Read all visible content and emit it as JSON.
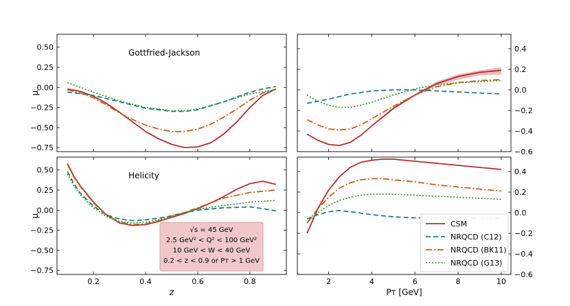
{
  "colors": {
    "CSM": "#b5292e",
    "NRQCD (C12)": "#1a7f8e",
    "NRQCD (BK11)": "#cc5d15",
    "NRQCD (G13)": "#3a9c2c",
    "band": "#e8a0a2",
    "box_fill": "#f0c8c8",
    "box_edge": "#c89a9a"
  },
  "chart_data": [
    {
      "type": "line",
      "panel": "top-left",
      "annotation": "Gottfried-Jackson",
      "xlabel": "",
      "ylabel": "μ",
      "xlim": [
        0.06,
        0.94
      ],
      "ylim": [
        -0.8,
        0.66
      ],
      "xticks": [
        0.2,
        0.4,
        0.6,
        0.8
      ],
      "yticks": [
        -0.75,
        -0.5,
        -0.25,
        0.0,
        0.25,
        0.5
      ],
      "ytick_labels": [
        "−0.75",
        "−0.50",
        "−0.25",
        "0.00",
        "0.25",
        "0.50"
      ],
      "y_axis_side": "left",
      "series": [
        {
          "name": "CSM",
          "x": [
            0.1,
            0.15,
            0.2,
            0.25,
            0.3,
            0.35,
            0.4,
            0.45,
            0.5,
            0.55,
            0.6,
            0.65,
            0.7,
            0.75,
            0.8,
            0.85,
            0.9
          ],
          "y": [
            -0.02,
            -0.05,
            -0.11,
            -0.2,
            -0.31,
            -0.43,
            -0.55,
            -0.64,
            -0.71,
            -0.75,
            -0.74,
            -0.69,
            -0.58,
            -0.43,
            -0.25,
            -0.1,
            -0.02
          ]
        },
        {
          "name": "NRQCD (C12)",
          "x": [
            0.1,
            0.2,
            0.3,
            0.4,
            0.5,
            0.55,
            0.6,
            0.7,
            0.8,
            0.85,
            0.9
          ],
          "y": [
            -0.06,
            -0.1,
            -0.18,
            -0.26,
            -0.3,
            -0.3,
            -0.28,
            -0.18,
            -0.06,
            -0.02,
            0.01
          ]
        },
        {
          "name": "NRQCD (BK11)",
          "x": [
            0.1,
            0.15,
            0.2,
            0.25,
            0.3,
            0.35,
            0.4,
            0.45,
            0.5,
            0.55,
            0.6,
            0.65,
            0.7,
            0.75,
            0.8,
            0.85,
            0.9
          ],
          "y": [
            -0.03,
            -0.07,
            -0.13,
            -0.22,
            -0.32,
            -0.4,
            -0.47,
            -0.52,
            -0.55,
            -0.55,
            -0.52,
            -0.46,
            -0.37,
            -0.27,
            -0.16,
            -0.07,
            -0.02
          ]
        },
        {
          "name": "NRQCD (G13)",
          "x": [
            0.1,
            0.15,
            0.2,
            0.3,
            0.4,
            0.5,
            0.55,
            0.6,
            0.7,
            0.8,
            0.9
          ],
          "y": [
            0.06,
            0.0,
            -0.06,
            -0.17,
            -0.25,
            -0.29,
            -0.29,
            -0.27,
            -0.18,
            -0.08,
            -0.03
          ]
        }
      ]
    },
    {
      "type": "line",
      "panel": "top-right",
      "xlabel": "",
      "ylabel": "",
      "xlim": [
        0.55,
        10.45
      ],
      "ylim": [
        -0.6,
        0.54
      ],
      "xticks": [
        2,
        4,
        6,
        8,
        10
      ],
      "yticks": [
        -0.6,
        -0.4,
        -0.2,
        0.0,
        0.2,
        0.4
      ],
      "ytick_labels": [
        "−0.6",
        "−0.4",
        "−0.2",
        "0.0",
        "0.2",
        "0.4"
      ],
      "y_axis_side": "right",
      "series": [
        {
          "name": "CSM",
          "x": [
            1,
            1.5,
            2,
            2.5,
            3,
            3.5,
            4,
            5,
            6,
            7,
            8,
            9,
            10
          ],
          "y": [
            -0.43,
            -0.49,
            -0.53,
            -0.54,
            -0.51,
            -0.44,
            -0.35,
            -0.18,
            -0.05,
            0.06,
            0.13,
            0.17,
            0.19
          ],
          "band_lo": [
            -0.43,
            -0.49,
            -0.53,
            -0.54,
            -0.51,
            -0.44,
            -0.35,
            -0.19,
            -0.06,
            0.04,
            0.1,
            0.14,
            0.15
          ],
          "band_hi": [
            -0.43,
            -0.49,
            -0.53,
            -0.54,
            -0.51,
            -0.44,
            -0.35,
            -0.17,
            -0.04,
            0.08,
            0.15,
            0.19,
            0.22
          ]
        },
        {
          "name": "NRQCD (C12)",
          "x": [
            1,
            2,
            3,
            4,
            5,
            6,
            7,
            8,
            9,
            10
          ],
          "y": [
            -0.13,
            -0.09,
            -0.04,
            -0.01,
            0.0,
            0.0,
            -0.01,
            -0.02,
            -0.03,
            -0.04
          ]
        },
        {
          "name": "NRQCD (BK11)",
          "x": [
            1,
            1.5,
            2,
            2.5,
            3,
            3.5,
            4,
            5,
            6,
            7,
            8,
            9,
            10
          ],
          "y": [
            -0.29,
            -0.34,
            -0.38,
            -0.39,
            -0.38,
            -0.34,
            -0.28,
            -0.16,
            -0.05,
            0.03,
            0.07,
            0.09,
            0.1
          ]
        },
        {
          "name": "NRQCD (G13)",
          "x": [
            1,
            1.5,
            2,
            2.5,
            3,
            3.5,
            4,
            5,
            6,
            7,
            8,
            9,
            10
          ],
          "y": [
            -0.05,
            -0.11,
            -0.15,
            -0.17,
            -0.17,
            -0.15,
            -0.12,
            -0.05,
            0.01,
            0.05,
            0.07,
            0.08,
            0.09
          ]
        }
      ]
    },
    {
      "type": "line",
      "panel": "bottom-left",
      "annotation": "Helicity",
      "xlabel": "z",
      "ylabel": "μ",
      "xlim": [
        0.06,
        0.94
      ],
      "ylim": [
        -0.8,
        0.66
      ],
      "xticks": [
        0.2,
        0.4,
        0.6,
        0.8
      ],
      "xtick_labels": [
        "0.2",
        "0.4",
        "0.6",
        "0.8"
      ],
      "yticks": [
        -0.75,
        -0.5,
        -0.25,
        0.0,
        0.25,
        0.5
      ],
      "ytick_labels": [
        "−0.75",
        "−0.50",
        "−0.25",
        "0.00",
        "0.25",
        "0.50"
      ],
      "y_axis_side": "left",
      "series": [
        {
          "name": "CSM",
          "x": [
            0.1,
            0.125,
            0.15,
            0.2,
            0.25,
            0.3,
            0.35,
            0.4,
            0.45,
            0.5,
            0.55,
            0.6,
            0.65,
            0.7,
            0.75,
            0.8,
            0.85,
            0.9
          ],
          "y": [
            0.58,
            0.42,
            0.3,
            0.1,
            -0.06,
            -0.16,
            -0.19,
            -0.18,
            -0.14,
            -0.09,
            -0.04,
            0.02,
            0.09,
            0.17,
            0.26,
            0.33,
            0.36,
            0.32
          ]
        },
        {
          "name": "NRQCD (C12)",
          "x": [
            0.1,
            0.125,
            0.15,
            0.2,
            0.25,
            0.3,
            0.35,
            0.4,
            0.45,
            0.5,
            0.55,
            0.6,
            0.7,
            0.8,
            0.85,
            0.9
          ],
          "y": [
            0.48,
            0.33,
            0.21,
            0.05,
            -0.06,
            -0.11,
            -0.13,
            -0.12,
            -0.1,
            -0.07,
            -0.03,
            0.0,
            0.03,
            0.04,
            0.02,
            -0.01
          ]
        },
        {
          "name": "NRQCD (BK11)",
          "x": [
            0.1,
            0.125,
            0.15,
            0.2,
            0.25,
            0.3,
            0.35,
            0.4,
            0.45,
            0.5,
            0.55,
            0.6,
            0.65,
            0.7,
            0.8,
            0.9
          ],
          "y": [
            0.57,
            0.41,
            0.29,
            0.09,
            -0.06,
            -0.15,
            -0.18,
            -0.17,
            -0.13,
            -0.08,
            -0.03,
            0.03,
            0.09,
            0.15,
            0.22,
            0.25
          ]
        },
        {
          "name": "NRQCD (G13)",
          "x": [
            0.1,
            0.125,
            0.15,
            0.2,
            0.25,
            0.3,
            0.35,
            0.4,
            0.45,
            0.5,
            0.55,
            0.6,
            0.7,
            0.8,
            0.9
          ],
          "y": [
            0.45,
            0.3,
            0.19,
            0.03,
            -0.08,
            -0.14,
            -0.16,
            -0.15,
            -0.12,
            -0.07,
            -0.03,
            0.01,
            0.06,
            0.1,
            0.12
          ]
        }
      ],
      "info_box": [
        "√s = 45 GeV",
        "2.5 GeV² < Q² < 100 GeV²",
        "10 GeV < W < 40 GeV",
        "0.2 < z < 0.9 or Pᴛ > 1 GeV"
      ]
    },
    {
      "type": "line",
      "panel": "bottom-right",
      "xlabel": "Pᴛ [GeV]",
      "ylabel": "",
      "xlim": [
        0.55,
        10.45
      ],
      "ylim": [
        -0.6,
        0.54
      ],
      "xticks": [
        2,
        4,
        6,
        8,
        10
      ],
      "xtick_labels": [
        "2",
        "4",
        "6",
        "8",
        "10"
      ],
      "yticks": [
        -0.6,
        -0.4,
        -0.2,
        0.0,
        0.2,
        0.4
      ],
      "ytick_labels": [
        "−0.6",
        "−0.4",
        "−0.2",
        "0.0",
        "0.2",
        "0.4"
      ],
      "y_axis_side": "right",
      "legend": {
        "placement": "bottom-right",
        "entries": [
          "CSM",
          "NRQCD (C12)",
          "NRQCD (BK11)",
          "NRQCD (G13)"
        ]
      },
      "series": [
        {
          "name": "CSM",
          "x": [
            1,
            1.25,
            1.5,
            2,
            2.5,
            3,
            3.5,
            4,
            4.5,
            5,
            6,
            7,
            8,
            9,
            10
          ],
          "y": [
            -0.2,
            -0.08,
            0.04,
            0.22,
            0.35,
            0.44,
            0.49,
            0.51,
            0.52,
            0.52,
            0.5,
            0.48,
            0.46,
            0.44,
            0.42
          ]
        },
        {
          "name": "NRQCD (C12)",
          "x": [
            1,
            1.5,
            2,
            2.5,
            3,
            4,
            5,
            6,
            7,
            8,
            9,
            10
          ],
          "y": [
            -0.06,
            -0.02,
            0.01,
            0.02,
            0.01,
            -0.02,
            -0.04,
            -0.05,
            -0.05,
            -0.05,
            -0.05,
            -0.05
          ]
        },
        {
          "name": "NRQCD (BK11)",
          "x": [
            1,
            1.25,
            1.5,
            2,
            2.5,
            3,
            3.5,
            4,
            4.5,
            5,
            6,
            7,
            8,
            9,
            10
          ],
          "y": [
            -0.1,
            -0.03,
            0.04,
            0.15,
            0.24,
            0.29,
            0.32,
            0.33,
            0.33,
            0.32,
            0.3,
            0.27,
            0.25,
            0.23,
            0.21
          ]
        },
        {
          "name": "NRQCD (G13)",
          "x": [
            1,
            1.5,
            2,
            2.5,
            3,
            3.5,
            4,
            5,
            6,
            7,
            8,
            9,
            10
          ],
          "y": [
            -0.1,
            0.0,
            0.07,
            0.12,
            0.15,
            0.17,
            0.18,
            0.18,
            0.17,
            0.16,
            0.15,
            0.14,
            0.13
          ]
        }
      ]
    }
  ]
}
